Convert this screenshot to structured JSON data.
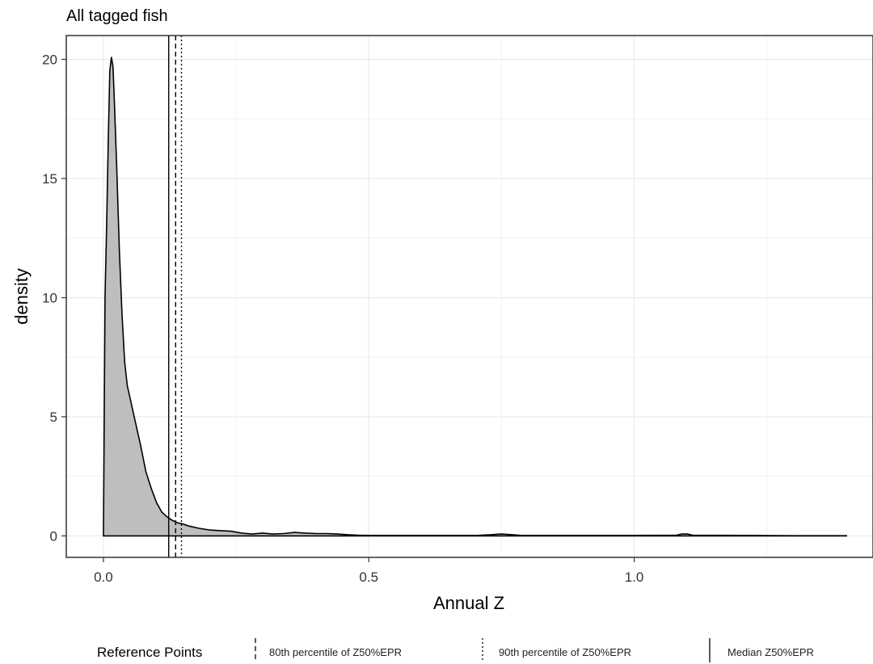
{
  "chart_data": {
    "type": "area",
    "title": "All tagged fish",
    "xlabel": "Annual Z",
    "ylabel": "density",
    "xlim": [
      -0.07,
      1.45
    ],
    "ylim": [
      -0.9,
      21
    ],
    "xticks": [
      0.0,
      0.5,
      1.0
    ],
    "xtick_labels": [
      "0.0",
      "0.5",
      "1.0"
    ],
    "yticks": [
      0,
      5,
      10,
      15,
      20
    ],
    "ytick_labels": [
      "0",
      "5",
      "10",
      "15",
      "20"
    ],
    "grid": true,
    "fill_color": "#bebebe",
    "line_color": "#000000",
    "density": {
      "x": [
        0.0,
        0.003,
        0.006,
        0.009,
        0.012,
        0.015,
        0.018,
        0.021,
        0.025,
        0.03,
        0.035,
        0.04,
        0.045,
        0.05,
        0.06,
        0.07,
        0.08,
        0.09,
        0.1,
        0.11,
        0.12,
        0.13,
        0.14,
        0.15,
        0.16,
        0.18,
        0.2,
        0.22,
        0.24,
        0.26,
        0.28,
        0.3,
        0.32,
        0.34,
        0.36,
        0.38,
        0.4,
        0.42,
        0.44,
        0.46,
        0.48,
        0.5,
        0.6,
        0.7,
        0.73,
        0.75,
        0.77,
        0.79,
        0.9,
        1.0,
        1.08,
        1.09,
        1.1,
        1.11,
        1.2,
        1.3,
        1.4
      ],
      "y": [
        0,
        10.0,
        13.0,
        16.5,
        19.5,
        20.1,
        19.7,
        18.0,
        15.5,
        12.0,
        9.3,
        7.3,
        6.3,
        5.8,
        4.8,
        3.8,
        2.7,
        2.0,
        1.4,
        1.0,
        0.8,
        0.65,
        0.55,
        0.5,
        0.42,
        0.32,
        0.25,
        0.22,
        0.2,
        0.12,
        0.08,
        0.12,
        0.08,
        0.1,
        0.15,
        0.12,
        0.1,
        0.1,
        0.08,
        0.05,
        0.03,
        0.02,
        0.02,
        0.02,
        0.05,
        0.08,
        0.05,
        0.02,
        0.02,
        0.02,
        0.03,
        0.08,
        0.08,
        0.03,
        0.02,
        0.01,
        0.01
      ]
    },
    "reference_lines": [
      {
        "label": "Median Z50%EPR",
        "x": 0.123,
        "style": "solid"
      },
      {
        "label": "80th percentile of Z50%EPR",
        "x": 0.136,
        "style": "dashed"
      },
      {
        "label": "90th percentile of Z50%EPR",
        "x": 0.147,
        "style": "dotted"
      }
    ],
    "legend": {
      "title": "Reference Points",
      "placement": "bottom",
      "items": [
        "80th percentile of Z50%EPR",
        "90th percentile of Z50%EPR",
        "Median Z50%EPR"
      ]
    }
  }
}
